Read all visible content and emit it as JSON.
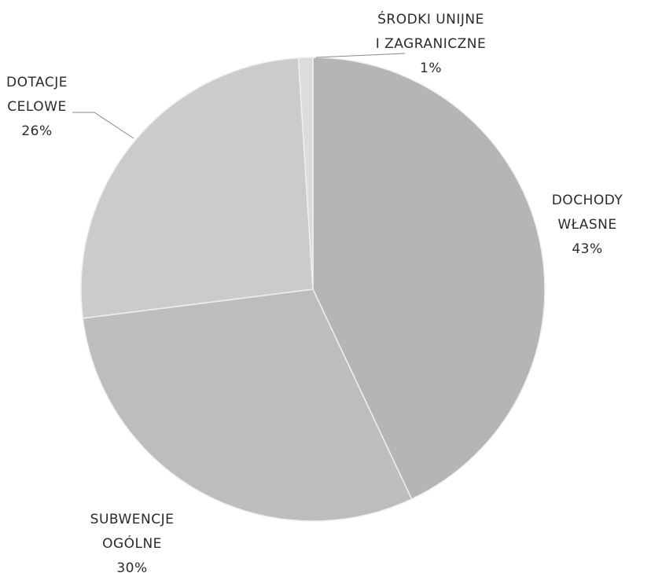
{
  "chart_data": {
    "type": "pie",
    "start_angle_deg": 0,
    "direction": "clockwise",
    "legend": "none",
    "slices": [
      {
        "label_lines": [
          "DOCHODY",
          "WŁASNE"
        ],
        "value": 43,
        "value_label": "43%",
        "color": "#b5b5b5"
      },
      {
        "label_lines": [
          "SUBWENCJE",
          "OGÓLNE"
        ],
        "value": 30,
        "value_label": "30%",
        "color": "#bdbdbd"
      },
      {
        "label_lines": [
          "DOTACJE",
          "CELOWE"
        ],
        "value": 26,
        "value_label": "26%",
        "color": "#cbcbcb"
      },
      {
        "label_lines": [
          "ŚRODKI UNIJNE",
          "I ZAGRANICZNE"
        ],
        "value": 1,
        "value_label": "1%",
        "color": "#dcdcdc"
      }
    ]
  }
}
